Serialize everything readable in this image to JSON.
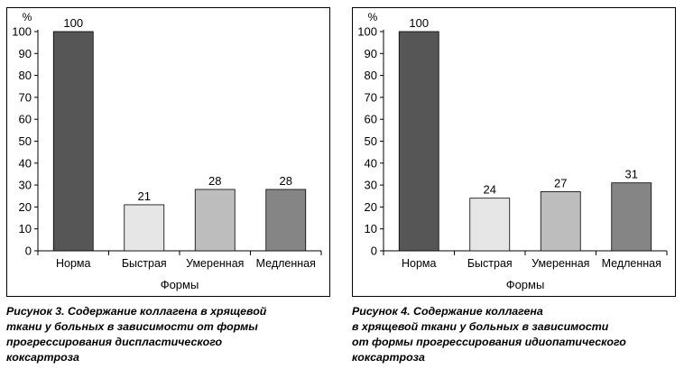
{
  "charts": [
    {
      "caption_lines": [
        "Рисунок 3. Содержание коллагена в хрящевой",
        "ткани у больных в зависимости от формы",
        "прогрессирования диспластического",
        "коксартроза"
      ]
    },
    {
      "caption_lines": [
        "Рисунок 4. Содержание коллагена",
        "в хрящевой ткани у больных в зависимости",
        "от формы прогрессирования идиопатического",
        "коксартроза"
      ]
    }
  ],
  "chart_data": [
    {
      "type": "bar",
      "title": "Рисунок 3. Содержание коллагена в хрящевой ткани у больных в зависимости от формы прогрессирования диспластического коксартроза",
      "categories": [
        "Норма",
        "Быстрая",
        "Умеренная",
        "Медленная"
      ],
      "values": [
        100,
        21,
        28,
        28
      ],
      "data_labels": [
        "100",
        "21",
        "28",
        "28"
      ],
      "bar_colors": [
        "#565656",
        "#e6e6e6",
        "#bdbdbd",
        "#858585"
      ],
      "xlabel": "Формы",
      "ylabel": "%",
      "ylim": [
        0,
        100
      ],
      "yticks": [
        0,
        10,
        20,
        30,
        40,
        50,
        60,
        70,
        80,
        90,
        100
      ],
      "grid": false,
      "legend": "none"
    },
    {
      "type": "bar",
      "title": "Рисунок 4. Содержание коллагена в хрящевой ткани у больных в зависимости от формы прогрессирования идиопатического коксартроза",
      "categories": [
        "Норма",
        "Быстрая",
        "Умеренная",
        "Медленная"
      ],
      "values": [
        100,
        24,
        27,
        31
      ],
      "data_labels": [
        "100",
        "24",
        "27",
        "31"
      ],
      "bar_colors": [
        "#565656",
        "#e6e6e6",
        "#bdbdbd",
        "#858585"
      ],
      "xlabel": "Формы",
      "ylabel": "%",
      "ylim": [
        0,
        100
      ],
      "yticks": [
        0,
        10,
        20,
        30,
        40,
        50,
        60,
        70,
        80,
        90,
        100
      ],
      "grid": false,
      "legend": "none"
    }
  ]
}
